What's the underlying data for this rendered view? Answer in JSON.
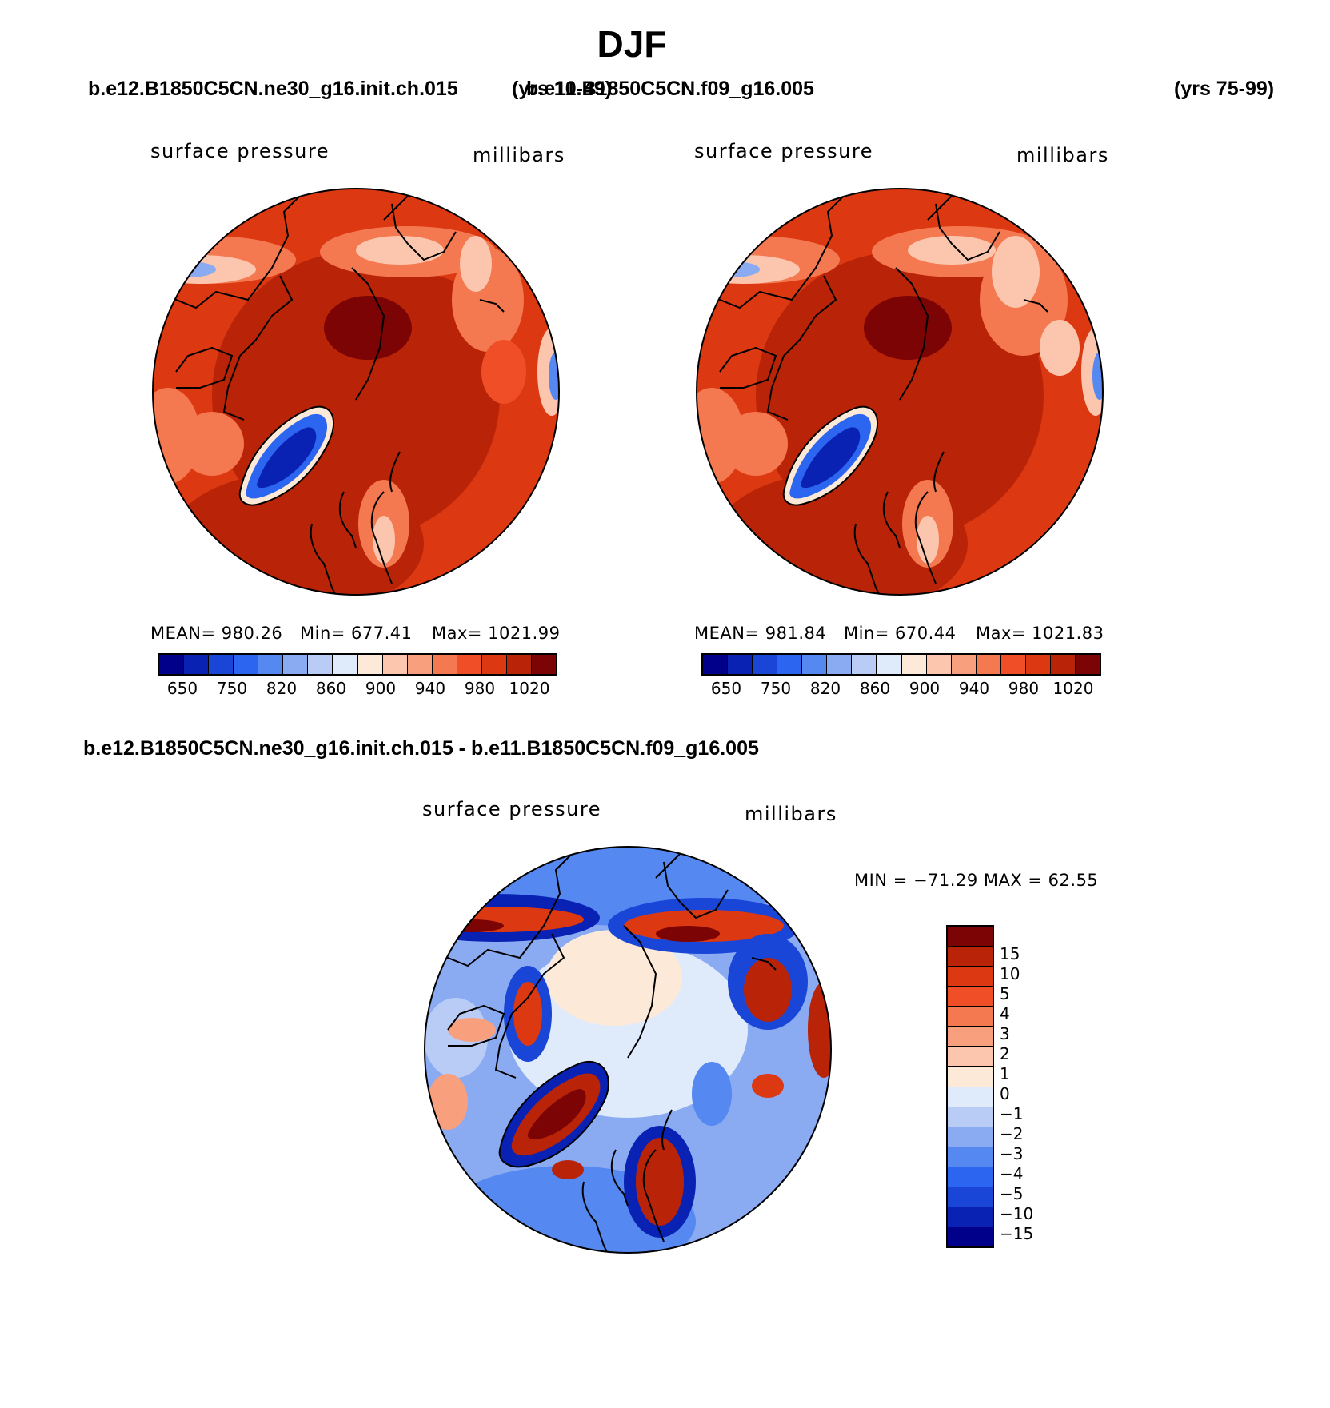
{
  "season": "DJF",
  "case1": {
    "name": "b.e12.B1850C5CN.ne30_g16.init.ch.015",
    "years": "(yrs 10-49)",
    "variable": "surface pressure",
    "units": "millibars",
    "mean": "MEAN= 980.26",
    "min": "Min= 677.41",
    "max": "Max= 1021.99"
  },
  "case2": {
    "name": "b.e11.B1850C5CN.f09_g16.005",
    "years": "(yrs 75-99)",
    "variable": "surface pressure",
    "units": "millibars",
    "mean": "MEAN= 981.84",
    "min": "Min= 670.44",
    "max": "Max= 1021.83"
  },
  "diff": {
    "title": "b.e12.B1850C5CN.ne30_g16.init.ch.015 - b.e11.B1850C5CN.f09_g16.005",
    "variable": "surface pressure",
    "units": "millibars",
    "minmax": "MIN = −71.29 MAX =   62.55"
  },
  "abs_colorbar": {
    "colors": [
      "#00008a",
      "#0a22b4",
      "#1a46d8",
      "#2c66f0",
      "#5588f0",
      "#8aaaf2",
      "#b8ccf6",
      "#dfeafb",
      "#fde9d8",
      "#fbc6ad",
      "#f89f7e",
      "#f47850",
      "#f04e26",
      "#dc3812",
      "#b92408",
      "#7c0404"
    ],
    "labels": [
      "650",
      "750",
      "820",
      "860",
      "900",
      "940",
      "980",
      "1020"
    ]
  },
  "diff_colorbar": {
    "colors": [
      "#7c0404",
      "#b92408",
      "#dc3812",
      "#f04e26",
      "#f47850",
      "#f89f7e",
      "#fbc6ad",
      "#fde9d8",
      "#dfeafb",
      "#b8ccf6",
      "#8aaaf2",
      "#5588f0",
      "#2c66f0",
      "#1a46d8",
      "#0a22b4",
      "#00008a"
    ],
    "labels": [
      "15",
      "10",
      "5",
      "4",
      "3",
      "2",
      "1",
      "0",
      "−1",
      "−2",
      "−3",
      "−4",
      "−5",
      "−10",
      "−15"
    ]
  }
}
